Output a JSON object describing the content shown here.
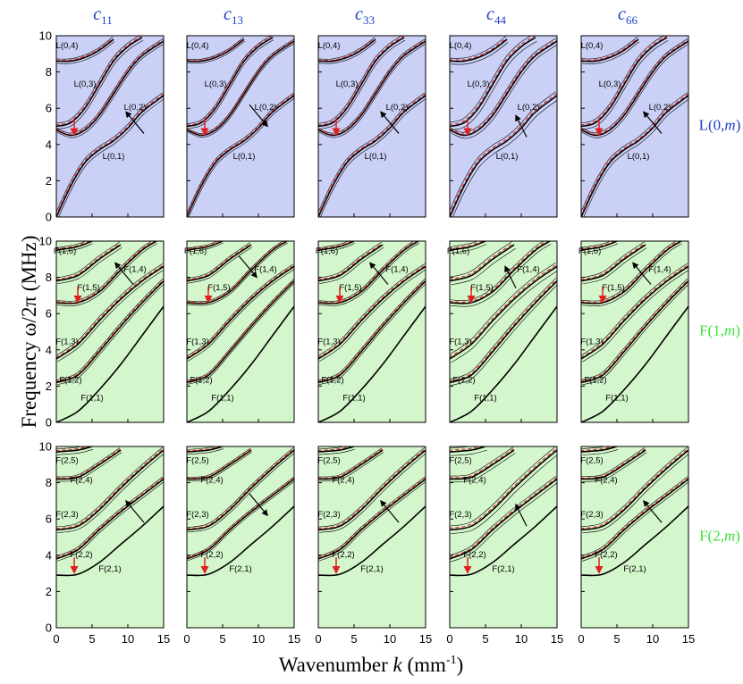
{
  "figure": {
    "columns": [
      {
        "main": "c",
        "sub": "11"
      },
      {
        "main": "c",
        "sub": "13"
      },
      {
        "main": "c",
        "sub": "33"
      },
      {
        "main": "c",
        "sub": "44"
      },
      {
        "main": "c",
        "sub": "66"
      }
    ],
    "rows": [
      {
        "family": "L",
        "n": "0",
        "text_pre": "L(0,",
        "text_m": "m",
        "text_post": ")",
        "color": "#1c3fc4",
        "bg": "#cbd1f6"
      },
      {
        "family": "F",
        "n": "1",
        "text_pre": "F(1,",
        "text_m": "m",
        "text_post": ")",
        "color": "#3ee03e",
        "bg": "#d4f6cc"
      },
      {
        "family": "F",
        "n": "2",
        "text_pre": "F(2,",
        "text_m": "m",
        "text_post": ")",
        "color": "#3ee03e",
        "bg": "#d4f6cc"
      }
    ],
    "ylabel": "Frequency   ω/2π   (MHz)",
    "xlabel_pre": "Wavenumber ",
    "xlabel_var": "k",
    "xlabel_post": " (mm",
    "xlabel_sup": "-1",
    "xlabel_close": ")",
    "marker_colors": {
      "red_arrow": "#e02020",
      "black_arrow": "#000000",
      "perturbed_curve": "#e02020"
    }
  },
  "chart_data": {
    "type": "line",
    "xlabel": "Wavenumber k (mm-1)",
    "ylabel": "Frequency ω/2π (MHz)",
    "xlim": [
      0,
      15
    ],
    "ylim": [
      0,
      10
    ],
    "x_ticks": [
      0,
      5,
      10,
      15
    ],
    "y_ticks": [
      0,
      2,
      4,
      6,
      8,
      10
    ],
    "panels": [
      {
        "row": "L(0,m)",
        "modes": [
          {
            "name": "L(0,1)",
            "points": [
              [
                0,
                0
              ],
              [
                2,
                1.7
              ],
              [
                4,
                3.0
              ],
              [
                6,
                3.7
              ],
              [
                8,
                4.2
              ],
              [
                10,
                4.9
              ],
              [
                12,
                5.8
              ],
              [
                15,
                6.7
              ]
            ]
          },
          {
            "name": "L(0,2)",
            "points": [
              [
                0,
                4.8
              ],
              [
                2,
                4.5
              ],
              [
                4,
                4.8
              ],
              [
                6,
                5.6
              ],
              [
                8,
                6.8
              ],
              [
                10,
                8.0
              ],
              [
                12,
                8.9
              ],
              [
                15,
                9.7
              ]
            ]
          },
          {
            "name": "L(0,3)",
            "points": [
              [
                0,
                5.0
              ],
              [
                2,
                5.2
              ],
              [
                4,
                6.0
              ],
              [
                6,
                7.3
              ],
              [
                8,
                8.6
              ],
              [
                10,
                9.4
              ],
              [
                12,
                9.9
              ]
            ]
          },
          {
            "name": "L(0,4)",
            "points": [
              [
                0,
                8.6
              ],
              [
                2,
                8.6
              ],
              [
                4,
                8.8
              ],
              [
                6,
                9.2
              ],
              [
                8,
                9.8
              ]
            ]
          }
        ]
      },
      {
        "row": "F(1,m)",
        "modes": [
          {
            "name": "F(1,1)",
            "points": [
              [
                0,
                0
              ],
              [
                3,
                0.6
              ],
              [
                6,
                1.8
              ],
              [
                9,
                3.2
              ],
              [
                12,
                4.8
              ],
              [
                15,
                6.4
              ]
            ]
          },
          {
            "name": "F(1,2)",
            "points": [
              [
                0,
                2.2
              ],
              [
                3,
                2.6
              ],
              [
                6,
                3.9
              ],
              [
                9,
                5.3
              ],
              [
                12,
                6.6
              ],
              [
                15,
                7.8
              ]
            ]
          },
          {
            "name": "F(1,3)",
            "points": [
              [
                0,
                3.5
              ],
              [
                3,
                4.3
              ],
              [
                6,
                5.6
              ],
              [
                9,
                6.8
              ],
              [
                12,
                7.8
              ],
              [
                15,
                8.6
              ]
            ]
          },
          {
            "name": "F(1,4)",
            "points": [
              [
                0,
                6.6
              ],
              [
                3,
                6.6
              ],
              [
                6,
                7.2
              ],
              [
                9,
                8.4
              ],
              [
                12,
                9.5
              ],
              [
                14,
                10
              ]
            ]
          },
          {
            "name": "F(1,5)",
            "points": [
              [
                0,
                7.8
              ],
              [
                3,
                8.1
              ],
              [
                6,
                9.0
              ],
              [
                9,
                9.8
              ]
            ]
          },
          {
            "name": "F(1,6)",
            "points": [
              [
                0,
                9.5
              ],
              [
                3,
                9.7
              ],
              [
                5,
                10
              ]
            ]
          }
        ]
      },
      {
        "row": "F(2,m)",
        "modes": [
          {
            "name": "F(2,1)",
            "points": [
              [
                0,
                2.9
              ],
              [
                3,
                2.95
              ],
              [
                6,
                3.6
              ],
              [
                9,
                4.6
              ],
              [
                12,
                5.6
              ],
              [
                15,
                6.7
              ]
            ]
          },
          {
            "name": "F(2,2)",
            "points": [
              [
                0,
                3.8
              ],
              [
                3,
                4.3
              ],
              [
                6,
                5.4
              ],
              [
                9,
                6.4
              ],
              [
                12,
                7.3
              ],
              [
                15,
                8.2
              ]
            ]
          },
          {
            "name": "F(2,3)",
            "points": [
              [
                0,
                5.4
              ],
              [
                3,
                5.6
              ],
              [
                6,
                6.5
              ],
              [
                9,
                7.7
              ],
              [
                12,
                8.8
              ],
              [
                15,
                9.8
              ]
            ]
          },
          {
            "name": "F(2,4)",
            "points": [
              [
                0,
                8.2
              ],
              [
                3,
                8.3
              ],
              [
                6,
                9.0
              ],
              [
                9,
                9.8
              ]
            ]
          },
          {
            "name": "F(2,5)",
            "points": [
              [
                0,
                9.7
              ],
              [
                3,
                9.8
              ],
              [
                5,
                10
              ]
            ]
          }
        ]
      }
    ]
  }
}
